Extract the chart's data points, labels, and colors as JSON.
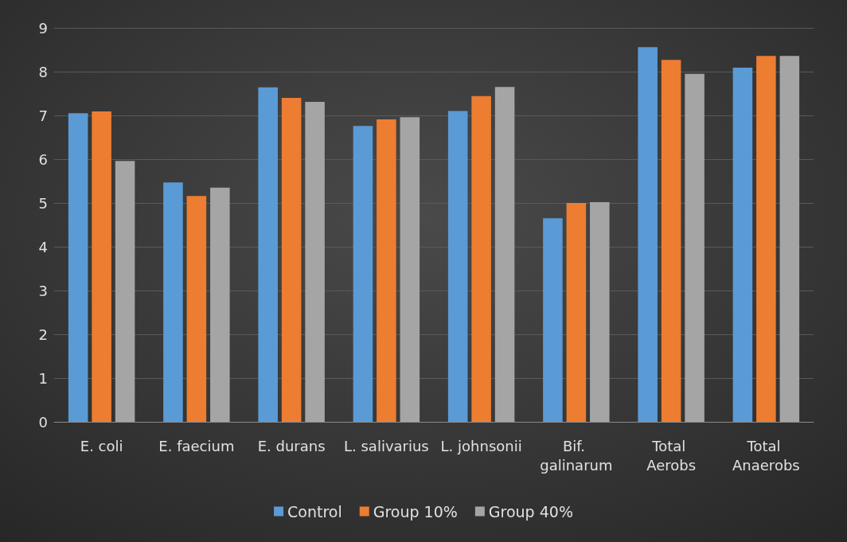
{
  "chart_data": {
    "type": "bar",
    "categories": [
      "E. coli",
      "E. faecium",
      "E. durans",
      "L. salivarius",
      "L. johnsonii",
      "Bif. galinarum",
      "Total Aerobs",
      "Total Anaerobs"
    ],
    "series": [
      {
        "name": "Control",
        "color": "#5b9bd5",
        "values": [
          7.05,
          5.47,
          7.64,
          6.76,
          7.1,
          4.65,
          8.56,
          8.09
        ]
      },
      {
        "name": "Group 10%",
        "color": "#ed7d31",
        "values": [
          7.09,
          5.16,
          7.4,
          6.91,
          7.44,
          5.0,
          8.27,
          8.36
        ]
      },
      {
        "name": "Group 40%",
        "color": "#a5a5a5",
        "values": [
          5.96,
          5.35,
          7.31,
          6.96,
          7.65,
          5.02,
          7.95,
          8.36
        ]
      }
    ],
    "ylim": [
      0,
      9
    ],
    "yticks": [
      0,
      1,
      2,
      3,
      4,
      5,
      6,
      7,
      8,
      9
    ],
    "grid": "y",
    "legend": "bottom"
  }
}
